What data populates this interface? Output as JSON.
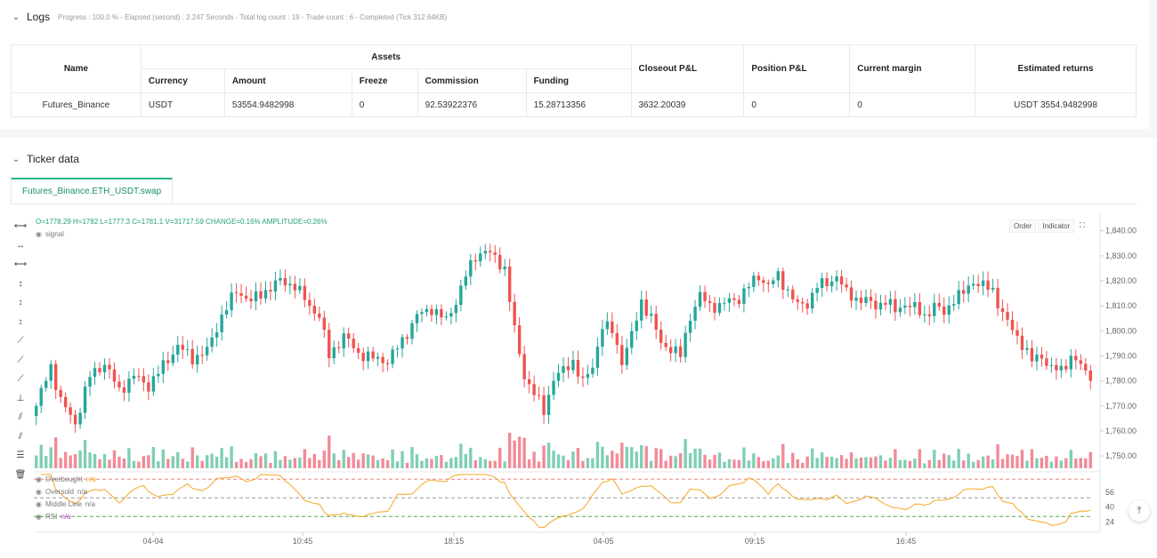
{
  "logs": {
    "title": "Logs",
    "status": "Progress : 100.0 % - Elapsed (second) : 2.247  Seconds - Total log count : 19 - Trade count : 6 - Completed (Tick 312.64KB)"
  },
  "table": {
    "headers": {
      "name": "Name",
      "assets": "Assets",
      "currency": "Currency",
      "amount": "Amount",
      "freeze": "Freeze",
      "commission": "Commission",
      "funding": "Funding",
      "closeout": "Closeout P&L",
      "position": "Position P&L",
      "margin": "Current margin",
      "returns": "Estimated returns"
    },
    "row": {
      "name": "Futures_Binance",
      "currency": "USDT",
      "amount": "53554.9482998",
      "freeze": "0",
      "commission": "92.53922376",
      "funding": "15.28713356",
      "closeout": "3632.20039",
      "position": "0",
      "margin": "0",
      "returns": "USDT 3554.9482998"
    }
  },
  "ticker": {
    "title": "Ticker data",
    "tab": "Futures_Binance.ETH_USDT.swap",
    "ohlc": "O=1778.29 H=1782 L=1777.3 C=1781.1 V=31717.59 CHANGE=0.16% AMPLITUDE=0.26%",
    "signal_label": "signal",
    "buttons": {
      "order": "Order",
      "indicator": "Indicator"
    },
    "indicators": {
      "overbought": "Overbought",
      "oversold": "Oversold",
      "middle": "Middle Line",
      "rsi": "RSI",
      "na": "n/a"
    }
  },
  "colors": {
    "up": "#26a69a",
    "down": "#ef5350",
    "up_vol": "#7fcfb4",
    "down_vol": "#f28b98",
    "rsi": "#f5a623",
    "accent": "#27b383"
  },
  "chart_data": {
    "type": "candlestick",
    "y_ticks": [
      "1,840.00",
      "1,830.00",
      "1,820.00",
      "1,810.00",
      "1,800.00",
      "1,790.00",
      "1,780.00",
      "1,770.00",
      "1,760.00",
      "1,750.00"
    ],
    "ylim": [
      1744,
      1847
    ],
    "x_ticks": [
      "04-04",
      "10:45",
      "18:15",
      "04-05",
      "09:15",
      "16:45"
    ],
    "rsi_ticks": [
      "56",
      "40",
      "24"
    ],
    "rsi_levels": {
      "overbought": 70,
      "middle": 50,
      "oversold": 30
    },
    "rsi_ylim": [
      14,
      76
    ],
    "anchors": [
      [
        0,
        1770
      ],
      [
        3,
        1786
      ],
      [
        5,
        1772
      ],
      [
        8,
        1763
      ],
      [
        11,
        1782
      ],
      [
        14,
        1787
      ],
      [
        17,
        1776
      ],
      [
        20,
        1782
      ],
      [
        23,
        1778
      ],
      [
        26,
        1786
      ],
      [
        29,
        1794
      ],
      [
        32,
        1789
      ],
      [
        35,
        1792
      ],
      [
        38,
        1806
      ],
      [
        41,
        1816
      ],
      [
        44,
        1812
      ],
      [
        47,
        1816
      ],
      [
        50,
        1820
      ],
      [
        53,
        1818
      ],
      [
        56,
        1810
      ],
      [
        58,
        1806
      ],
      [
        60,
        1790
      ],
      [
        63,
        1798
      ],
      [
        66,
        1791
      ],
      [
        69,
        1789
      ],
      [
        72,
        1788
      ],
      [
        75,
        1796
      ],
      [
        78,
        1806
      ],
      [
        81,
        1809
      ],
      [
        84,
        1804
      ],
      [
        86,
        1812
      ],
      [
        88,
        1822
      ],
      [
        90,
        1830
      ],
      [
        92,
        1832
      ],
      [
        94,
        1829
      ],
      [
        96,
        1825
      ],
      [
        98,
        1800
      ],
      [
        100,
        1782
      ],
      [
        102,
        1775
      ],
      [
        104,
        1768
      ],
      [
        106,
        1781
      ],
      [
        108,
        1784
      ],
      [
        110,
        1788
      ],
      [
        112,
        1779
      ],
      [
        114,
        1786
      ],
      [
        116,
        1802
      ],
      [
        118,
        1800
      ],
      [
        120,
        1788
      ],
      [
        122,
        1798
      ],
      [
        124,
        1812
      ],
      [
        126,
        1805
      ],
      [
        128,
        1795
      ],
      [
        130,
        1793
      ],
      [
        132,
        1790
      ],
      [
        134,
        1806
      ],
      [
        136,
        1814
      ],
      [
        138,
        1810
      ],
      [
        140,
        1810
      ],
      [
        142,
        1812
      ],
      [
        144,
        1813
      ],
      [
        146,
        1818
      ],
      [
        148,
        1822
      ],
      [
        150,
        1818
      ],
      [
        152,
        1822
      ],
      [
        154,
        1816
      ],
      [
        156,
        1810
      ],
      [
        158,
        1811
      ],
      [
        160,
        1818
      ],
      [
        162,
        1819
      ],
      [
        164,
        1822
      ],
      [
        166,
        1815
      ],
      [
        168,
        1813
      ],
      [
        170,
        1812
      ],
      [
        172,
        1810
      ],
      [
        174,
        1812
      ],
      [
        176,
        1808
      ],
      [
        178,
        1811
      ],
      [
        180,
        1809
      ],
      [
        182,
        1806
      ],
      [
        184,
        1810
      ],
      [
        186,
        1807
      ],
      [
        188,
        1813
      ],
      [
        190,
        1815
      ],
      [
        192,
        1820
      ],
      [
        194,
        1818
      ],
      [
        196,
        1816
      ],
      [
        198,
        1807
      ],
      [
        200,
        1800
      ],
      [
        202,
        1795
      ],
      [
        204,
        1788
      ],
      [
        206,
        1790
      ],
      [
        208,
        1785
      ],
      [
        210,
        1784
      ],
      [
        212,
        1790
      ],
      [
        214,
        1786
      ],
      [
        216,
        1780
      ]
    ]
  }
}
